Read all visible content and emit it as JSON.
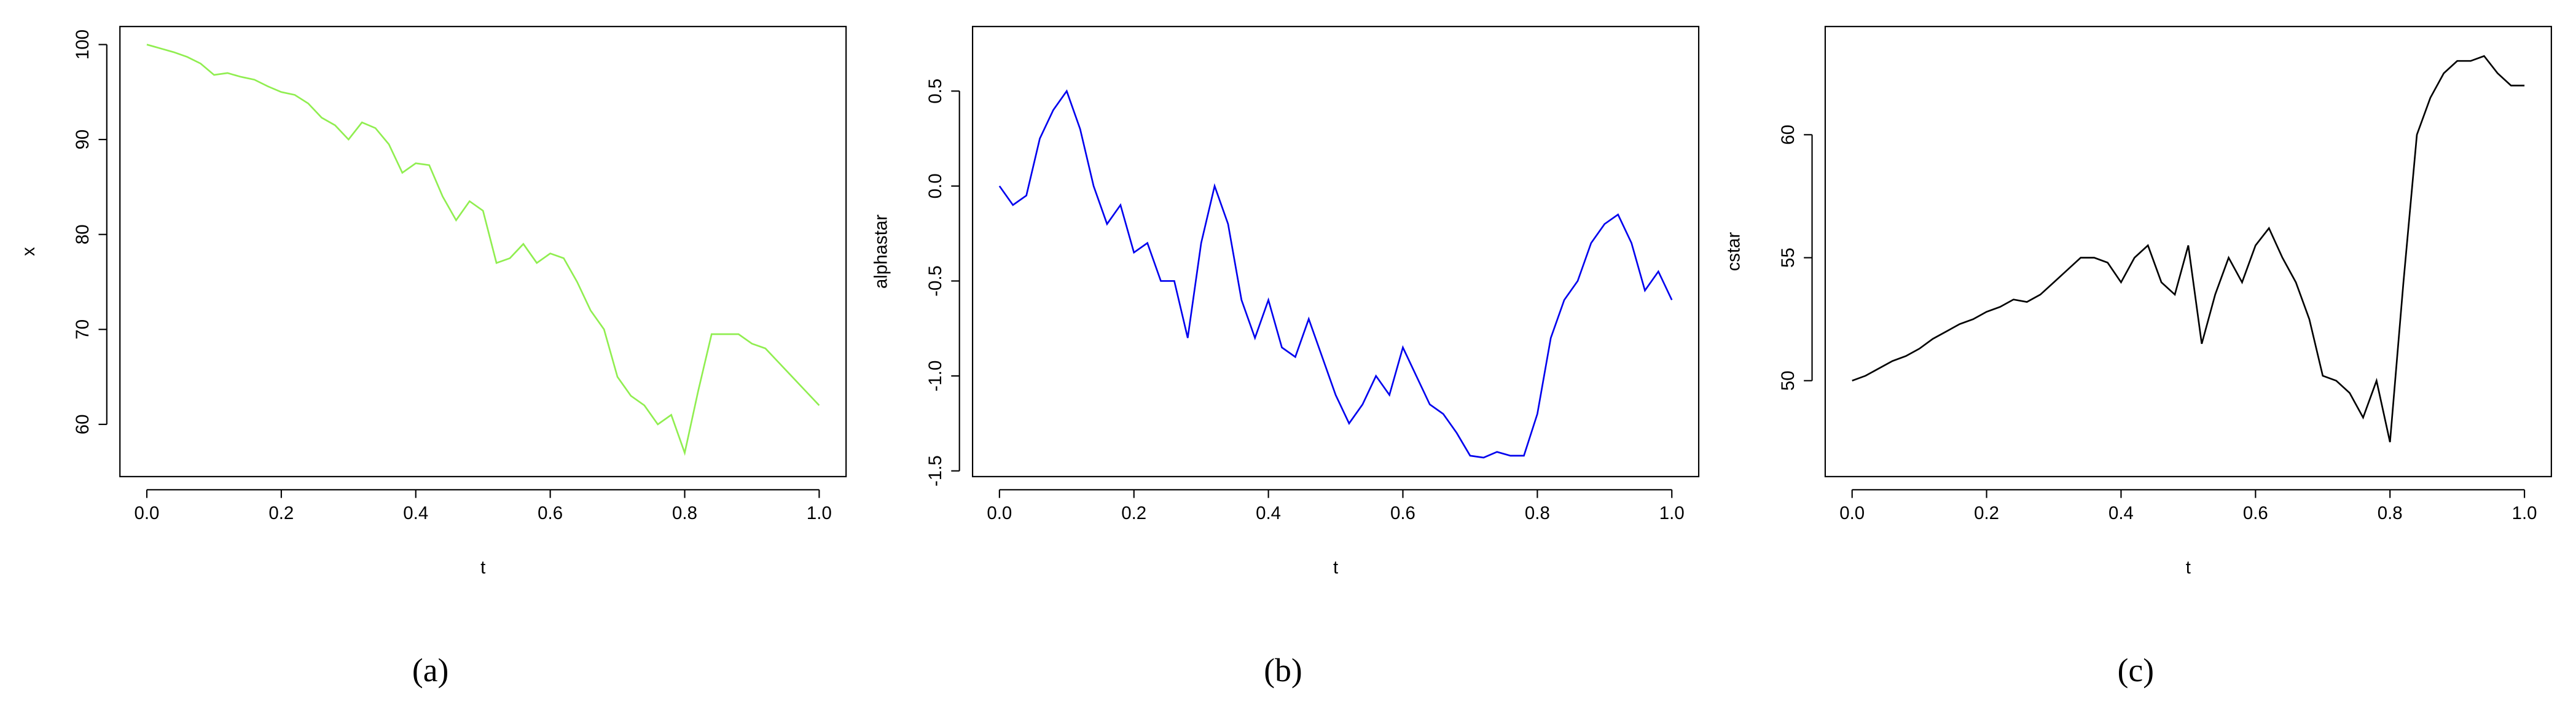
{
  "chart_data": [
    {
      "type": "line",
      "xlabel": "t",
      "ylabel": "x",
      "caption": "(a)",
      "xlim": [
        -0.04,
        1.04
      ],
      "ylim": [
        54.5,
        101.9
      ],
      "xticks": [
        {
          "value": 0,
          "label": "0.0"
        },
        0.2,
        0.4,
        0.6,
        0.8,
        {
          "value": 1,
          "label": "1.0"
        }
      ],
      "yticks": [
        60,
        70,
        80,
        90,
        100
      ],
      "x": [
        0,
        0.02,
        0.04,
        0.06,
        0.08,
        0.1,
        0.12,
        0.14,
        0.16,
        0.18,
        0.2,
        0.22,
        0.24,
        0.26,
        0.28,
        0.3,
        0.32,
        0.34,
        0.36,
        0.38,
        0.4,
        0.42,
        0.44,
        0.46,
        0.48,
        0.5,
        0.52,
        0.54,
        0.56,
        0.58,
        0.6,
        0.62,
        0.64,
        0.66,
        0.68,
        0.7,
        0.72,
        0.74,
        0.76,
        0.78,
        0.8,
        0.82,
        0.84,
        0.86,
        0.88,
        0.9,
        0.92,
        0.94,
        0.96,
        0.98,
        1
      ],
      "series": [
        {
          "color": "#90ee50",
          "values": [
            100,
            99.6,
            99.2,
            98.7,
            98,
            96.8,
            97,
            96.6,
            96.3,
            95.6,
            95,
            94.7,
            93.8,
            92.3,
            91.5,
            90,
            91.8,
            91.2,
            89.5,
            86.5,
            87.5,
            87.3,
            84,
            81.5,
            83.5,
            82.5,
            77,
            77.5,
            79,
            77,
            78,
            77.5,
            75,
            72,
            70,
            65,
            63,
            62,
            60,
            61,
            57,
            63.5,
            69.5,
            69.5,
            69.5,
            68.5,
            68,
            66.5,
            65,
            63.5,
            62
          ]
        }
      ]
    },
    {
      "type": "line",
      "xlabel": "t",
      "ylabel": "alphastar",
      "caption": "(b)",
      "xlim": [
        -0.04,
        1.04
      ],
      "ylim": [
        -1.53,
        0.84
      ],
      "xticks": [
        {
          "value": 0,
          "label": "0.0"
        },
        0.2,
        0.4,
        0.6,
        0.8,
        {
          "value": 1,
          "label": "1.0"
        }
      ],
      "yticks": [
        -1.5,
        {
          "value": -1,
          "label": "-1.0"
        },
        -0.5,
        {
          "value": 0,
          "label": "0.0"
        },
        0.5
      ],
      "x": [
        0,
        0.02,
        0.04,
        0.06,
        0.08,
        0.1,
        0.12,
        0.14,
        0.16,
        0.18,
        0.2,
        0.22,
        0.24,
        0.26,
        0.28,
        0.3,
        0.32,
        0.34,
        0.36,
        0.38,
        0.4,
        0.42,
        0.44,
        0.46,
        0.48,
        0.5,
        0.52,
        0.54,
        0.56,
        0.58,
        0.6,
        0.62,
        0.64,
        0.66,
        0.68,
        0.7,
        0.72,
        0.74,
        0.76,
        0.78,
        0.8,
        0.82,
        0.84,
        0.86,
        0.88,
        0.9,
        0.92,
        0.94,
        0.96,
        0.98,
        1
      ],
      "series": [
        {
          "color": "#0000ee",
          "values": [
            0,
            -0.1,
            -0.05,
            0.25,
            0.4,
            0.5,
            0.3,
            0,
            -0.2,
            -0.1,
            -0.35,
            -0.3,
            -0.5,
            -0.5,
            -0.8,
            -0.3,
            0,
            -0.2,
            -0.6,
            -0.8,
            -0.6,
            -0.85,
            -0.9,
            -0.7,
            -0.9,
            -1.1,
            -1.25,
            -1.15,
            -1,
            -1.1,
            -0.85,
            -1,
            -1.15,
            -1.2,
            -1.3,
            -1.42,
            -1.43,
            -1.4,
            -1.42,
            -1.42,
            -1.2,
            -0.8,
            -0.6,
            -0.5,
            -0.3,
            -0.2,
            -0.15,
            -0.3,
            -0.55,
            -0.45,
            -0.6
          ]
        }
      ]
    },
    {
      "type": "line",
      "xlabel": "t",
      "ylabel": "cstar",
      "caption": "(c)",
      "xlim": [
        -0.04,
        1.04
      ],
      "ylim": [
        46.1,
        64.4
      ],
      "xticks": [
        {
          "value": 0,
          "label": "0.0"
        },
        0.2,
        0.4,
        0.6,
        0.8,
        {
          "value": 1,
          "label": "1.0"
        }
      ],
      "yticks": [
        50,
        55,
        60
      ],
      "x": [
        0,
        0.02,
        0.04,
        0.06,
        0.08,
        0.1,
        0.12,
        0.14,
        0.16,
        0.18,
        0.2,
        0.22,
        0.24,
        0.26,
        0.28,
        0.3,
        0.32,
        0.34,
        0.36,
        0.38,
        0.4,
        0.42,
        0.44,
        0.46,
        0.48,
        0.5,
        0.52,
        0.54,
        0.56,
        0.58,
        0.6,
        0.62,
        0.64,
        0.66,
        0.68,
        0.7,
        0.72,
        0.74,
        0.76,
        0.78,
        0.8,
        0.82,
        0.84,
        0.86,
        0.88,
        0.9,
        0.92,
        0.94,
        0.96,
        0.98,
        1
      ],
      "series": [
        {
          "color": "#000000",
          "values": [
            50,
            50.2,
            50.5,
            50.8,
            51,
            51.3,
            51.7,
            52,
            52.3,
            52.5,
            52.8,
            53,
            53.3,
            53.2,
            53.5,
            54,
            54.5,
            55,
            55,
            54.8,
            54,
            55,
            55.5,
            54,
            53.5,
            55.5,
            51.5,
            53.5,
            55,
            54,
            55.5,
            56.2,
            55,
            54,
            52.5,
            50.2,
            50,
            49.5,
            48.5,
            50,
            47.5,
            54,
            60,
            61.5,
            62.5,
            63,
            63,
            63.2,
            62.5,
            62,
            62
          ]
        }
      ]
    }
  ]
}
